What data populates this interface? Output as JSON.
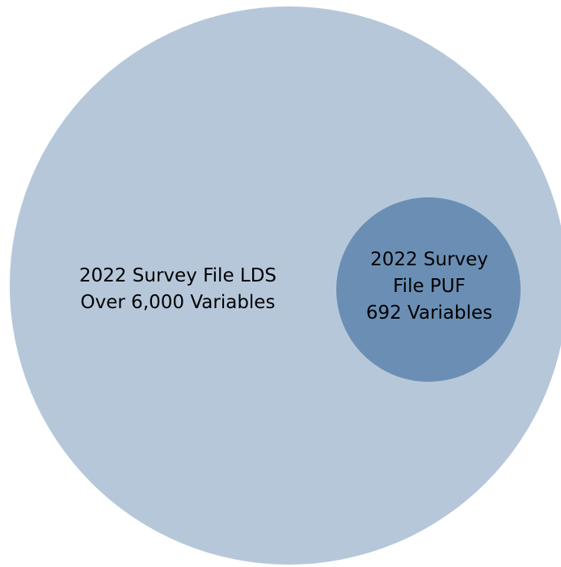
{
  "diagram": {
    "outer_set": {
      "lines": [
        "2022 Survey File LDS",
        "Over 6,000 Variables"
      ],
      "color": "#b6c7da"
    },
    "inner_set": {
      "lines": [
        "2022 Survey",
        "File PUF",
        "692 Variables"
      ],
      "color": "#6b8fb4"
    }
  }
}
